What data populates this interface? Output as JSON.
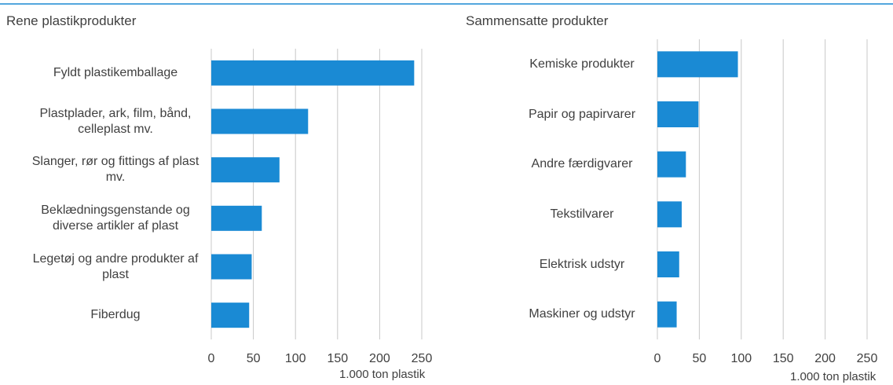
{
  "chart_data": [
    {
      "type": "bar",
      "orientation": "horizontal",
      "title": "Rene plastikprodukter",
      "categories": [
        "Fyldt plastikemballage",
        "Plastplader, ark, film, bånd, celleplast mv.",
        "Slanger, rør og fittings af plast mv.",
        "Beklædningsgenstande og diverse artikler af plast",
        "Legetøj og andre produkter af plast",
        "Fiberdug"
      ],
      "values": [
        241,
        115,
        81,
        60,
        48,
        45
      ],
      "color": "#1a8ad4",
      "xlim": [
        0,
        250
      ],
      "xticks": [
        0,
        50,
        100,
        150,
        200,
        250
      ],
      "xlabel": "1.000 ton plastik",
      "grid": true
    },
    {
      "type": "bar",
      "orientation": "horizontal",
      "title": "Sammensatte produkter",
      "categories": [
        "Kemiske produkter",
        "Papir og papirvarer",
        "Andre færdigvarer",
        "Tekstilvarer",
        "Elektrisk udstyr",
        "Maskiner og udstyr"
      ],
      "values": [
        96,
        49,
        34,
        29,
        26,
        23
      ],
      "color": "#1a8ad4",
      "xlim": [
        0,
        250
      ],
      "xticks": [
        0,
        50,
        100,
        150,
        200,
        250
      ],
      "xlabel": "1.000 ton plastik",
      "grid": true
    }
  ]
}
